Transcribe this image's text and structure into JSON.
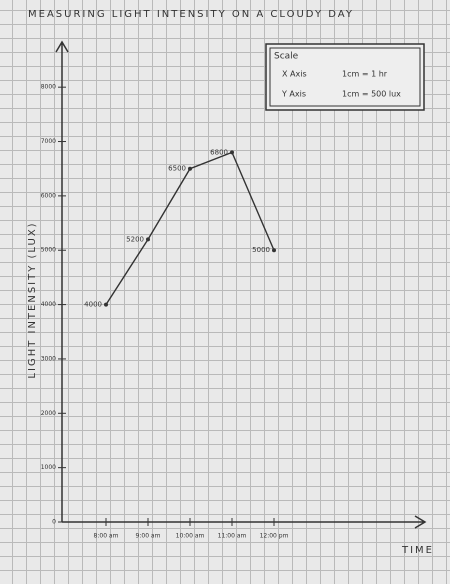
{
  "chart_data": {
    "type": "line",
    "title": "MEASURING LIGHT INTENSITY ON A CLOUDY DAY",
    "x_label": "TIME",
    "y_label": "LIGHT INTENSITY (LUX)",
    "categories": [
      "8:00 am",
      "9:00 am",
      "10:00 am",
      "11:00 am",
      "12:00 pm"
    ],
    "values": [
      4000,
      5200,
      6500,
      6800,
      5000
    ],
    "color": "#333333",
    "ylim": [
      0,
      8500
    ],
    "yticks": [
      0,
      1000,
      2000,
      3000,
      4000,
      5000,
      6000,
      7000,
      8000
    ],
    "annotations": [
      "Scale",
      "X Axis",
      "1cm = 1 hr",
      "Y Axis",
      "1cm = 500 lux"
    ]
  }
}
